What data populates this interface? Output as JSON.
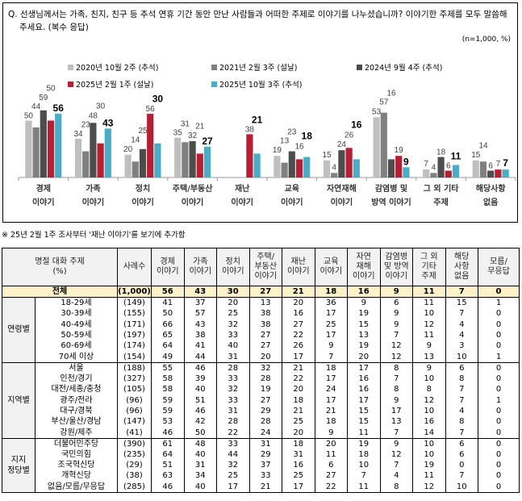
{
  "question": "Q. 선생님께서는 가족, 친지, 친구 등 추석 연휴 기간 동안 만난 사람들과 어떠한 주제로 이야기를 나누셨습니까? 이야기한 주제를 모두 말씀해 주세요. (복수 응답)",
  "unit": "(n=1,000, %)",
  "chart_data": {
    "type": "bar",
    "categories": [
      "경제\n이야기",
      "가족\n이야기",
      "정치\n이야기",
      "주택/부동산\n이야기",
      "재난\n이야기",
      "교육\n이야기",
      "자연재해\n이야기",
      "감염병 및\n방역 이야기",
      "그 외 기타\n주제",
      "해당사항\n없음"
    ],
    "series": [
      {
        "name": "2020년 10월 2주 (추석)",
        "color": "#bfbfbf",
        "values": [
          50,
          34,
          20,
          35,
          null,
          19,
          15,
          53,
          7,
          15
        ]
      },
      {
        "name": "2021년 2월 3주 (설날)",
        "color": "#808080",
        "values": [
          44,
          23,
          14,
          31,
          null,
          13,
          4,
          57,
          4,
          14
        ]
      },
      {
        "name": "2024년 9월 4주 (추석)",
        "color": "#4d4d4d",
        "values": [
          59,
          48,
          25,
          32,
          null,
          23,
          24,
          16,
          18,
          6
        ]
      },
      {
        "name": "2025년 2월 1주 (설날)",
        "color": "#b51f33",
        "values": [
          50,
          30,
          56,
          21,
          38,
          16,
          26,
          19,
          6,
          7
        ]
      },
      {
        "name": "2025년 10월 3주 (추석)",
        "color": "#4bacc6",
        "values": [
          56,
          43,
          30,
          27,
          21,
          18,
          16,
          9,
          11,
          7
        ]
      }
    ],
    "ylim": [
      0,
      60
    ],
    "grid": false,
    "legend": "top"
  },
  "note": "※ 25년 2월 1주 조사부터 '재난 이야기'를 보기에 추가함",
  "table": {
    "header": {
      "topic": "명절 대화 주제",
      "pct": "(%)",
      "n": "사례수",
      "cols": [
        "경제\n이야기",
        "가족\n이야기",
        "정치\n이야기",
        "주택/\n부동산\n이야기",
        "재난\n이야기",
        "교육\n이야기",
        "자연\n재해\n이야기",
        "감염병\n및 방역\n이야기",
        "그 외\n기타\n주제",
        "해당\n사항\n없음",
        "모름/\n무응답"
      ]
    },
    "total": {
      "label": "전체",
      "n": "(1,000)",
      "values": [
        56,
        43,
        30,
        27,
        21,
        18,
        16,
        9,
        11,
        7,
        0
      ]
    },
    "groups": [
      {
        "name": "연령별",
        "rows": [
          {
            "label": "18-29세",
            "n": "(149)",
            "values": [
              41,
              37,
              20,
              13,
              20,
              36,
              9,
              6,
              11,
              15,
              1
            ]
          },
          {
            "label": "30-39세",
            "n": "(155)",
            "values": [
              50,
              57,
              25,
              38,
              16,
              17,
              19,
              9,
              10,
              7,
              0
            ]
          },
          {
            "label": "40-49세",
            "n": "(171)",
            "values": [
              66,
              43,
              32,
              38,
              27,
              25,
              15,
              9,
              12,
              4,
              0
            ]
          },
          {
            "label": "50-59세",
            "n": "(197)",
            "values": [
              65,
              38,
              33,
              27,
              22,
              17,
              13,
              7,
              11,
              4,
              0
            ]
          },
          {
            "label": "60-69세",
            "n": "(174)",
            "values": [
              64,
              41,
              40,
              27,
              26,
              9,
              19,
              12,
              9,
              3,
              0
            ]
          },
          {
            "label": "70세 이상",
            "n": "(154)",
            "values": [
              49,
              44,
              31,
              20,
              17,
              7,
              20,
              12,
              13,
              10,
              1
            ]
          }
        ]
      },
      {
        "name": "지역별",
        "rows": [
          {
            "label": "서울",
            "n": "(188)",
            "values": [
              55,
              46,
              28,
              32,
              21,
              18,
              17,
              8,
              9,
              6,
              0
            ]
          },
          {
            "label": "인천/경기",
            "n": "(327)",
            "values": [
              58,
              39,
              33,
              28,
              22,
              17,
              16,
              7,
              10,
              8,
              0
            ]
          },
          {
            "label": "대전/세종/충청",
            "n": "(105)",
            "values": [
              58,
              40,
              32,
              19,
              20,
              24,
              16,
              8,
              8,
              7,
              0
            ]
          },
          {
            "label": "광주/전라",
            "n": "(96)",
            "values": [
              59,
              51,
              33,
              27,
              18,
              17,
              17,
              9,
              12,
              7,
              1
            ]
          },
          {
            "label": "대구/경북",
            "n": "(96)",
            "values": [
              59,
              46,
              31,
              29,
              21,
              21,
              15,
              17,
              10,
              4,
              0
            ]
          },
          {
            "label": "부산/울산/경남",
            "n": "(147)",
            "values": [
              53,
              42,
              28,
              28,
              25,
              18,
              15,
              13,
              16,
              8,
              0
            ]
          },
          {
            "label": "강원/제주",
            "n": "(41)",
            "values": [
              46,
              50,
              22,
              24,
              20,
              9,
              11,
              7,
              14,
              7,
              0
            ]
          }
        ]
      },
      {
        "name": "지지\n정당별",
        "rows": [
          {
            "label": "더불어민주당",
            "n": "(390)",
            "values": [
              61,
              48,
              33,
              31,
              18,
              20,
              19,
              9,
              10,
              6,
              0
            ]
          },
          {
            "label": "국민의힘",
            "n": "(235)",
            "values": [
              64,
              40,
              44,
              29,
              31,
              11,
              18,
              12,
              10,
              6,
              0
            ]
          },
          {
            "label": "조국혁신당",
            "n": "(29)",
            "values": [
              51,
              31,
              32,
              37,
              16,
              6,
              10,
              7,
              19,
              0,
              0
            ]
          },
          {
            "label": "개혁신당",
            "n": "(38)",
            "values": [
              63,
              34,
              25,
              33,
              25,
              27,
              7,
              4,
              11,
              7,
              0
            ]
          },
          {
            "label": "없음/모름/무응답",
            "n": "(285)",
            "values": [
              46,
              40,
              17,
              21,
              17,
              22,
              11,
              8,
              12,
              10,
              0
            ]
          }
        ]
      }
    ]
  }
}
